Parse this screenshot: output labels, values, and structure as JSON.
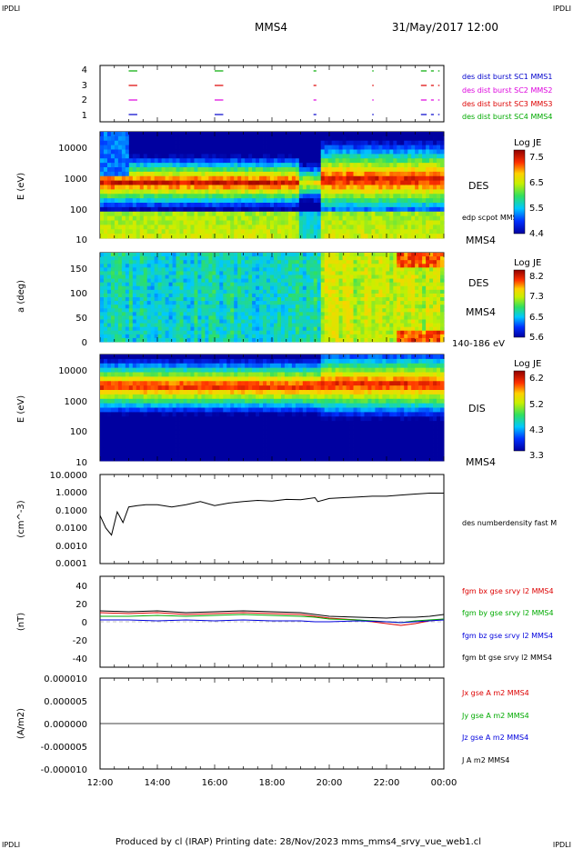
{
  "header": {
    "corner_tl": "IPDLI",
    "corner_tr": "IPDLI",
    "corner_bl": "IPDLI",
    "corner_br": "IPDLI",
    "spacecraft": "MMS4",
    "date_time": "31/May/2017 12:00"
  },
  "footer": {
    "text": "Produced by cl (IRAP)   Printing date: 28/Nov/2023   mms_mms4_srvy_vue_web1.cl"
  },
  "colors": {
    "mms1": "#00aa00",
    "mms2": "#dd00dd",
    "mms3": "#dd0000",
    "mms4": "#0000cc",
    "bx": "#dd0000",
    "by": "#00aa00",
    "bz": "#0000dd",
    "bt": "#000000",
    "corner": "#0000cc"
  },
  "chart_data": [
    {
      "type": "bar",
      "panel": "burst-intervals",
      "ylim": [
        0.5,
        4.5
      ],
      "ytick_labels": [
        "4",
        "3",
        "2",
        "1"
      ],
      "legend": [
        {
          "name": "des dist burst SC1 MMS1",
          "color": "#0000cc",
          "row": 1
        },
        {
          "name": "des dist burst SC2 MMS2",
          "color": "#dd00dd",
          "row": 2
        },
        {
          "name": "des dist burst SC3 MMS3",
          "color": "#dd0000",
          "row": 3
        },
        {
          "name": "des dist burst SC4 MMS4",
          "color": "#00aa00",
          "row": 4
        }
      ],
      "intervals_hours": [
        [
          13.0,
          13.3
        ],
        [
          16.0,
          16.3
        ],
        [
          19.45,
          19.55
        ],
        [
          21.5,
          21.55
        ],
        [
          23.2,
          23.4
        ],
        [
          23.55,
          23.65
        ],
        [
          23.8,
          23.85
        ]
      ]
    },
    {
      "type": "heatmap",
      "panel": "des-energy",
      "ylabel": "E (eV)",
      "yscale": "log",
      "ylim": [
        10,
        30000
      ],
      "ytick_labels": [
        "10000",
        "1000",
        "100",
        "10"
      ],
      "label": "DES",
      "side_labels": [
        "edp scpot MMS4",
        "MMS4"
      ],
      "colorbar": {
        "title": "Log JE",
        "range": [
          4.4,
          7.5
        ],
        "tick_labels": [
          "7.5",
          "6.5",
          "5.5",
          "4.4"
        ]
      }
    },
    {
      "type": "heatmap",
      "panel": "des-pitch",
      "ylabel": "a (deg)",
      "ylim": [
        0,
        180
      ],
      "ytick_labels": [
        "150",
        "100",
        "50",
        "0"
      ],
      "label": "DES",
      "side_labels": [
        "MMS4",
        "140-186 eV"
      ],
      "colorbar": {
        "title": "Log JE",
        "range": [
          5.6,
          8.2
        ],
        "tick_labels": [
          "8.2",
          "7.3",
          "6.5",
          "5.6"
        ]
      }
    },
    {
      "type": "heatmap",
      "panel": "dis-energy",
      "ylabel": "E (eV)",
      "yscale": "log",
      "ylim": [
        10,
        30000
      ],
      "ytick_labels": [
        "10000",
        "1000",
        "100",
        "10"
      ],
      "label": "DIS",
      "side_labels": [
        "MMS4"
      ],
      "colorbar": {
        "title": "Log JE",
        "range": [
          3.3,
          6.2
        ],
        "tick_labels": [
          "6.2",
          "5.2",
          "4.3",
          "3.3"
        ]
      }
    },
    {
      "type": "line",
      "panel": "density",
      "ylabel": "(cm^-3)",
      "yscale": "log",
      "ylim": [
        0.0001,
        10
      ],
      "ytick_labels": [
        "10.0000",
        "1.0000",
        "0.1000",
        "0.0100",
        "0.0010",
        "0.0001"
      ],
      "series": [
        {
          "name": "des numberdensity fast M",
          "color": "#000000",
          "x": [
            12.0,
            12.2,
            12.4,
            12.6,
            12.8,
            13.0,
            13.3,
            13.6,
            14.0,
            14.5,
            15.0,
            15.5,
            16.0,
            16.5,
            17.0,
            17.5,
            18.0,
            18.5,
            19.0,
            19.5,
            19.6,
            20.0,
            20.5,
            21.0,
            21.5,
            22.0,
            22.5,
            23.0,
            23.5,
            24.0
          ],
          "y": [
            0.05,
            0.01,
            0.004,
            0.08,
            0.02,
            0.15,
            0.18,
            0.2,
            0.2,
            0.15,
            0.2,
            0.3,
            0.18,
            0.25,
            0.3,
            0.35,
            0.32,
            0.4,
            0.38,
            0.5,
            0.3,
            0.45,
            0.5,
            0.55,
            0.6,
            0.6,
            0.7,
            0.8,
            0.9,
            0.9
          ]
        }
      ]
    },
    {
      "type": "line",
      "panel": "magnetic-field",
      "ylabel": "(nT)",
      "ylim": [
        -50,
        50
      ],
      "ytick_labels": [
        "40",
        "20",
        "0",
        "-20",
        "-40"
      ],
      "x": [
        12.0,
        13.0,
        14.0,
        15.0,
        16.0,
        17.0,
        18.0,
        19.0,
        19.5,
        20.0,
        21.0,
        22.0,
        22.5,
        23.0,
        23.5,
        24.0
      ],
      "series": [
        {
          "name": "fgm bx gse srvy l2 MMS4",
          "color": "#dd0000",
          "y": [
            10,
            9,
            10,
            8,
            9,
            10,
            9,
            8,
            6,
            4,
            2,
            -2,
            -4,
            -2,
            1,
            3
          ]
        },
        {
          "name": "fgm by gse srvy l2 MMS4",
          "color": "#00aa00",
          "y": [
            6,
            6,
            7,
            6,
            7,
            8,
            7,
            6,
            5,
            3,
            2,
            0,
            -1,
            1,
            2,
            3
          ]
        },
        {
          "name": "fgm bz gse srvy l2 MMS4",
          "color": "#0000dd",
          "y": [
            2,
            2,
            1,
            2,
            1,
            2,
            1,
            1,
            0,
            0,
            1,
            0,
            -1,
            0,
            1,
            2
          ]
        },
        {
          "name": "fgm bt gse srvy l2 MMS4",
          "color": "#000000",
          "y": [
            12,
            11,
            12,
            10,
            11,
            12,
            11,
            10,
            8,
            6,
            5,
            4,
            5,
            5,
            6,
            8
          ]
        }
      ]
    },
    {
      "type": "line",
      "panel": "current-density",
      "ylabel": "(A/m2)",
      "xlabel": "",
      "ylim": [
        -1e-05,
        1e-05
      ],
      "ytick_labels": [
        "0.000010",
        "0.000005",
        "0.000000",
        "-0.000005",
        "-0.000010"
      ],
      "xtick_labels": [
        "12:00",
        "14:00",
        "16:00",
        "18:00",
        "20:00",
        "22:00",
        "00:00"
      ],
      "series": [
        {
          "name": "Jx gse A m2 MMS4",
          "color": "#dd0000"
        },
        {
          "name": "Jy gse A m2 MMS4",
          "color": "#00aa00"
        },
        {
          "name": "Jz gse A m2 MMS4",
          "color": "#0000dd"
        },
        {
          "name": "J A m2 MMS4",
          "color": "#000000",
          "x": [
            12.0,
            24.0
          ],
          "y": [
            0.0,
            0.0
          ]
        }
      ]
    }
  ]
}
